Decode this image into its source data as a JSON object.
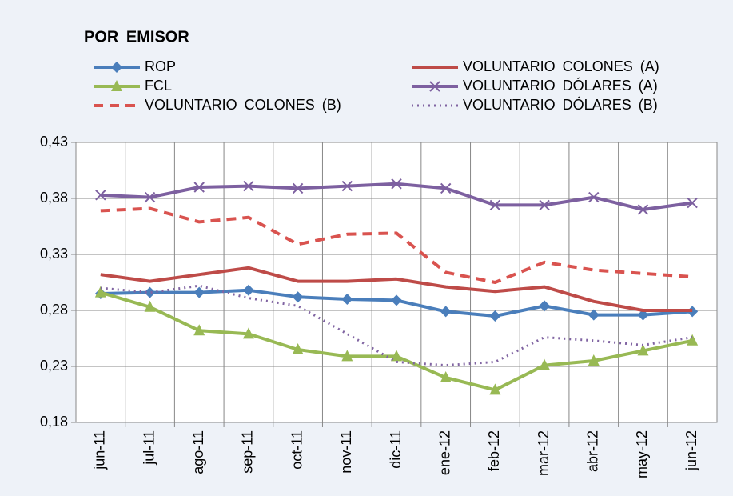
{
  "chart_data": {
    "type": "line",
    "title": "POR EMISOR",
    "categories": [
      "jun-11",
      "jul-11",
      "ago-11",
      "sep-11",
      "oct-11",
      "nov-11",
      "dic-11",
      "ene-12",
      "feb-12",
      "mar-12",
      "abr-12",
      "may-12",
      "jun-12"
    ],
    "ylim": [
      0.18,
      0.43
    ],
    "yticks": [
      {
        "value": 0.18,
        "label": "0,18"
      },
      {
        "value": 0.23,
        "label": "0,23"
      },
      {
        "value": 0.28,
        "label": "0,28"
      },
      {
        "value": 0.33,
        "label": "0,33"
      },
      {
        "value": 0.38,
        "label": "0,38"
      },
      {
        "value": 0.43,
        "label": "0,43"
      }
    ],
    "grid": true,
    "series": [
      {
        "name": "ROP",
        "color": "#4a7ebb",
        "marker": "diamond",
        "dash": "solid",
        "values": [
          0.295,
          0.296,
          0.296,
          0.298,
          0.292,
          0.29,
          0.289,
          0.279,
          0.275,
          0.284,
          0.276,
          0.276,
          0.279
        ]
      },
      {
        "name": "VOLUNTARIO COLONES (A)",
        "color": "#be4b48",
        "marker": "none",
        "dash": "solid",
        "values": [
          0.312,
          0.306,
          0.312,
          0.318,
          0.306,
          0.306,
          0.308,
          0.301,
          0.297,
          0.301,
          0.288,
          0.28,
          0.28
        ]
      },
      {
        "name": "FCL",
        "color": "#98b954",
        "marker": "triangle",
        "dash": "solid",
        "values": [
          0.296,
          0.283,
          0.262,
          0.259,
          0.245,
          0.239,
          0.239,
          0.22,
          0.209,
          0.231,
          0.235,
          0.244,
          0.253
        ]
      },
      {
        "name": "VOLUNTARIO DÓLARES (A)",
        "color": "#7d60a0",
        "marker": "x",
        "dash": "solid",
        "values": [
          0.383,
          0.381,
          0.39,
          0.391,
          0.389,
          0.391,
          0.393,
          0.389,
          0.374,
          0.374,
          0.381,
          0.37,
          0.376
        ]
      },
      {
        "name": "VOLUNTARIO COLONES (B)",
        "color": "#d9534f",
        "marker": "none",
        "dash": "dashed",
        "values": [
          0.369,
          0.371,
          0.359,
          0.363,
          0.339,
          0.348,
          0.349,
          0.314,
          0.305,
          0.323,
          0.316,
          0.313,
          0.31
        ]
      },
      {
        "name": "VOLUNTARIO DÓLARES (B)",
        "color": "#8064a2",
        "marker": "none",
        "dash": "dotted",
        "values": [
          0.3,
          0.296,
          0.302,
          0.291,
          0.284,
          0.259,
          0.234,
          0.231,
          0.234,
          0.256,
          0.253,
          0.249,
          0.256
        ]
      }
    ]
  }
}
